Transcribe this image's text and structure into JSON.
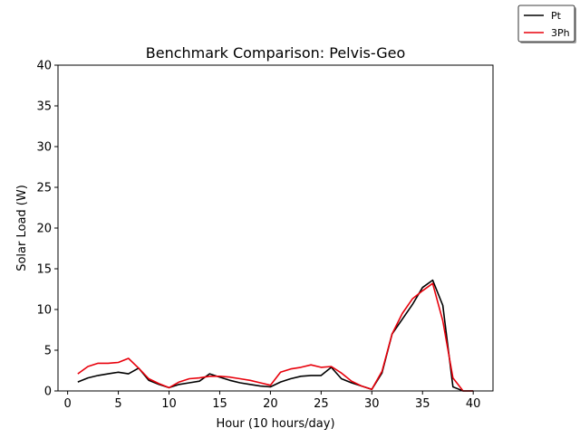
{
  "chart_data": {
    "type": "line",
    "title": "Benchmark Comparison: Pelvis-Geo",
    "xlabel": "Hour (10 hours/day)",
    "ylabel": "Solar Load (W)",
    "xlim": [
      -0.95,
      41.95
    ],
    "ylim": [
      0,
      40
    ],
    "xticks": [
      0,
      5,
      10,
      15,
      20,
      25,
      30,
      35,
      40
    ],
    "yticks": [
      0,
      5,
      10,
      15,
      20,
      25,
      30,
      35,
      40
    ],
    "grid": false,
    "legend_position": "top-right",
    "x": [
      1,
      2,
      3,
      4,
      5,
      6,
      7,
      8,
      9,
      10,
      11,
      12,
      13,
      14,
      15,
      16,
      17,
      18,
      19,
      20,
      21,
      22,
      23,
      24,
      25,
      26,
      27,
      28,
      29,
      30,
      31,
      32,
      33,
      34,
      35,
      36,
      37,
      38,
      39,
      40
    ],
    "series": [
      {
        "name": "Pt",
        "color": "#000000",
        "values": [
          1.1,
          1.6,
          1.9,
          2.1,
          2.3,
          2.1,
          2.8,
          1.3,
          0.8,
          0.4,
          0.8,
          1.0,
          1.2,
          2.1,
          1.7,
          1.3,
          1.0,
          0.8,
          0.6,
          0.5,
          1.1,
          1.5,
          1.8,
          1.9,
          1.9,
          2.9,
          1.5,
          1.0,
          0.6,
          0.2,
          2.2,
          7.0,
          8.8,
          10.6,
          12.7,
          13.6,
          10.5,
          0.5,
          0.0,
          0.0
        ]
      },
      {
        "name": "3Ph",
        "color": "#e8000b",
        "values": [
          2.1,
          3.0,
          3.4,
          3.4,
          3.5,
          4.0,
          2.8,
          1.5,
          0.9,
          0.4,
          1.1,
          1.5,
          1.6,
          1.8,
          1.8,
          1.7,
          1.5,
          1.3,
          1.0,
          0.7,
          2.3,
          2.7,
          2.9,
          3.2,
          2.9,
          3.0,
          2.2,
          1.2,
          0.6,
          0.2,
          2.4,
          7.0,
          9.5,
          11.3,
          12.3,
          13.2,
          8.6,
          1.6,
          0.0,
          0.0
        ]
      }
    ]
  }
}
